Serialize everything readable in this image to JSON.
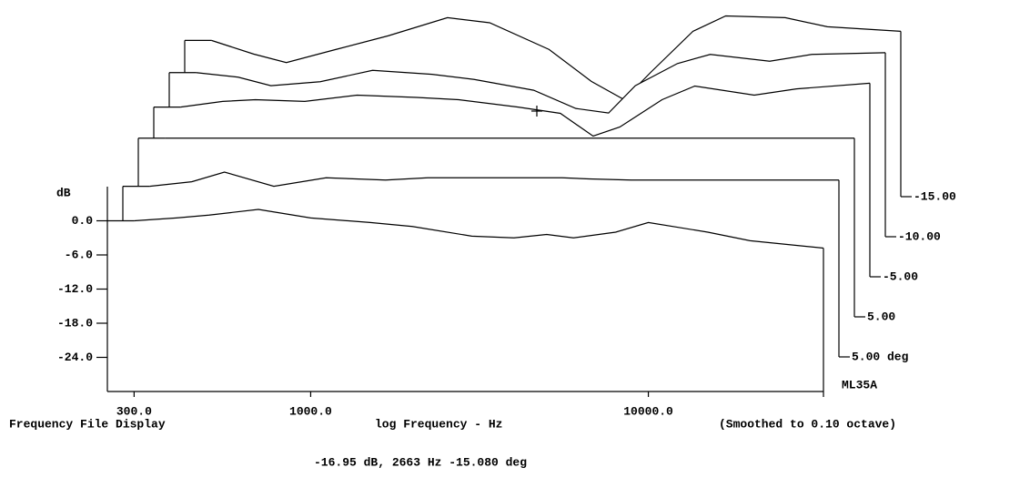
{
  "chart_data": {
    "type": "line",
    "title": "Frequency File Display",
    "x_label": "log Frequency - Hz",
    "subtitle": "(Smoothed to 0.10 octave)",
    "y_label": "dB",
    "annotation": "-16.95 dB, 2663 Hz  -15.080 deg",
    "xscale": "log",
    "x": [
      300,
      400,
      500,
      700,
      1000,
      1500,
      2000,
      3000,
      4000,
      5000,
      6000,
      8000,
      10000,
      15000,
      20000,
      33000
    ],
    "xlim": [
      250,
      33000
    ],
    "xticks": [
      {
        "value": 300,
        "label": "300.0"
      },
      {
        "value": 1000,
        "label": "1000.0"
      },
      {
        "value": 10000,
        "label": "10000.0"
      }
    ],
    "ylim": [
      -30,
      6
    ],
    "yticks": [
      {
        "value": 0,
        "label": "0.0"
      },
      {
        "value": -6,
        "label": "-6.0"
      },
      {
        "value": -12,
        "label": "-12.0"
      },
      {
        "value": -18,
        "label": "-18.0"
      },
      {
        "value": -24,
        "label": "-24.0"
      }
    ],
    "series": [
      {
        "name": "ML35A",
        "color": "#000000",
        "values": [
          0,
          0.5,
          1,
          2,
          0.5,
          -0.3,
          -1,
          -2.7,
          -3,
          -2.4,
          -3,
          -2,
          -0.3,
          -2,
          -3.5,
          -4.8
        ]
      },
      {
        "name": "5.00 deg",
        "color": "#000000",
        "values": [
          -0.5,
          0.3,
          2,
          -0.5,
          1,
          0.6,
          1,
          1,
          1,
          1,
          0.8,
          0.6,
          0.6,
          0.6,
          0.6,
          0.6
        ]
      },
      {
        "name": "5.00",
        "color": "#000000",
        "values": [
          1.4,
          1.4,
          1.4,
          1.4,
          1.4,
          1.4,
          1.4,
          1.4,
          1.4,
          1.4,
          1.4,
          1.4,
          1.4,
          1.4,
          1.4,
          1.4
        ]
      },
      {
        "name": "-5.00",
        "color": "#000000",
        "values": [
          0.3,
          1.3,
          1.6,
          1.3,
          2.4,
          2,
          1.6,
          0.3,
          -0.8,
          -4.8,
          -3.2,
          1.6,
          4,
          2.4,
          3.5,
          4.5
        ]
      },
      {
        "name": "-10.00",
        "color": "#000000",
        "values": [
          -0.2,
          -1,
          -2.5,
          -1.8,
          0.2,
          -0.5,
          -1.4,
          -3.3,
          -6.5,
          -7.3,
          -2.5,
          1.4,
          3,
          1.8,
          3,
          3.3
        ]
      },
      {
        "name": "-15.00",
        "color": "#000000",
        "values": [
          -1.1,
          -3.5,
          -5,
          -2.7,
          -0.3,
          2.9,
          2,
          -2.7,
          -8.3,
          -11.5,
          -6.7,
          0.5,
          3.2,
          2.9,
          1.3,
          0.5
        ]
      }
    ]
  }
}
